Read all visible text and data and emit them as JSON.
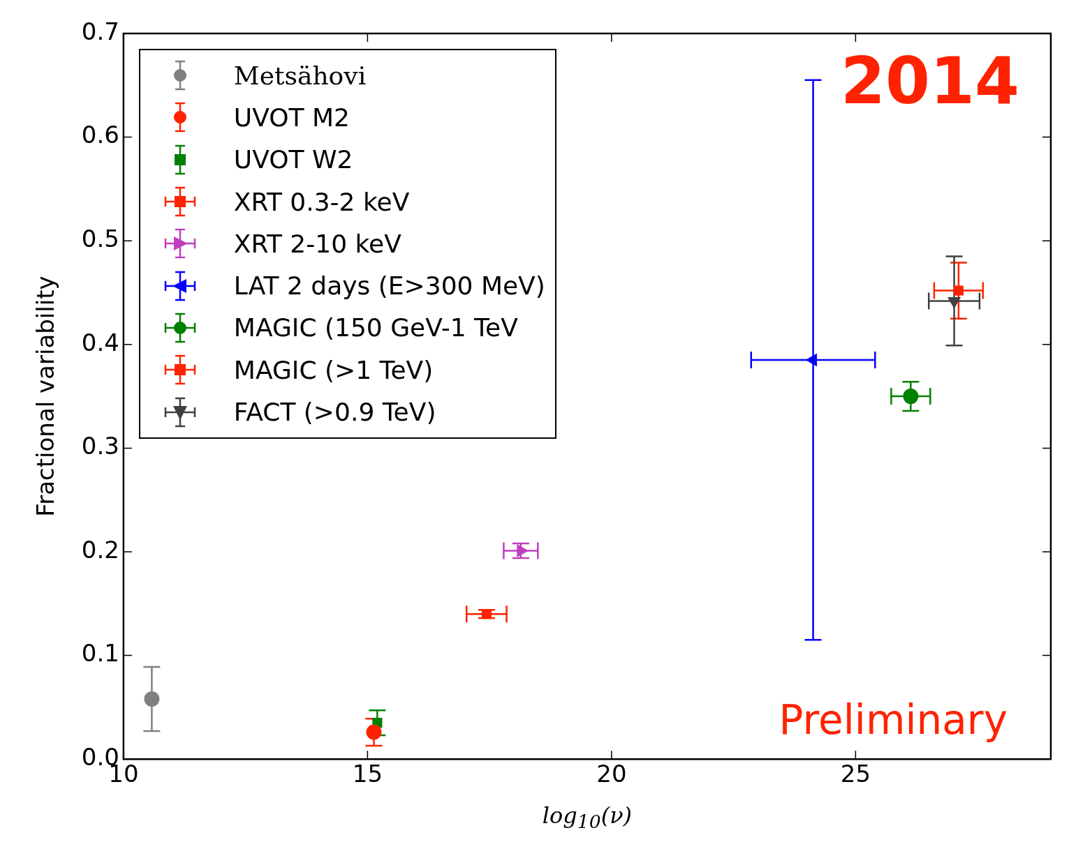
{
  "chart_data": {
    "type": "scatter",
    "xlabel": "log$_{10}$(ν)",
    "ylabel": "Fractional variability",
    "xlim": [
      10,
      29
    ],
    "xticks": [
      10,
      15,
      20,
      25
    ],
    "ylim": [
      0,
      0.7
    ],
    "yticks": [
      {
        "value": 0,
        "label": "0.0"
      },
      {
        "value": 0.1,
        "label": "0.1"
      },
      {
        "value": 0.2,
        "label": "0.2"
      },
      {
        "value": 0.3,
        "label": "0.3"
      },
      {
        "value": 0.4,
        "label": "0.4"
      },
      {
        "value": 0.5,
        "label": "0.5"
      },
      {
        "value": 0.6,
        "label": "0.6"
      },
      {
        "value": 0.7,
        "label": "0.7"
      }
    ],
    "grid": false,
    "legend": "top left",
    "annotations": [
      "2014",
      "Preliminary"
    ],
    "series": [
      {
        "name": "Metsähovi",
        "color": "#808080",
        "marker": "circle",
        "x": [
          10.58
        ],
        "values": [
          0.058
        ],
        "errors": [
          0.031
        ]
      },
      {
        "name": "UVOT M2",
        "color": "#ff2200",
        "marker": "circle",
        "x": [
          15.13
        ],
        "values": [
          0.026
        ],
        "errors": [
          0.013
        ]
      },
      {
        "name": "UVOT W2",
        "color": "#008000",
        "marker": "square",
        "x": [
          15.2
        ],
        "values": [
          0.035
        ],
        "errors": [
          0.012
        ]
      },
      {
        "name": "XRT 0.3-2 keV",
        "color": "#ff2200",
        "marker": "square",
        "x": [
          17.44
        ],
        "values": [
          0.14
        ],
        "errors": [
          0.004
        ],
        "xerrors": [
          0.41
        ]
      },
      {
        "name": "XRT 2-10 keV",
        "color": "#bf3fbf",
        "marker": "triangle-right",
        "x": [
          18.14
        ],
        "values": [
          0.201
        ],
        "errors": [
          0.007
        ],
        "xerrors": [
          0.35
        ]
      },
      {
        "name": "LAT 2 days (E>300 MeV)",
        "color": "#0000ff",
        "marker": "triangle-left",
        "x": [
          24.13
        ],
        "values": [
          0.385
        ],
        "errors": [
          0.27
        ],
        "xerrors": [
          1.27
        ]
      },
      {
        "name": "MAGIC (150 GeV-1 TeV",
        "color": "#008000",
        "marker": "circle",
        "x": [
          26.13
        ],
        "values": [
          0.35
        ],
        "errors": [
          0.014
        ],
        "xerrors": [
          0.4
        ]
      },
      {
        "name": "MAGIC (>1 TeV)",
        "color": "#ff2200",
        "marker": "square",
        "x": [
          27.11
        ],
        "values": [
          0.452
        ],
        "errors": [
          0.027
        ],
        "xerrors": [
          0.5
        ]
      },
      {
        "name": "FACT (>0.9 TeV)",
        "color": "#404040",
        "marker": "triangle-down",
        "x": [
          27.02
        ],
        "values": [
          0.442
        ],
        "errors": [
          0.043
        ],
        "xerrors": [
          0.52
        ]
      }
    ]
  }
}
